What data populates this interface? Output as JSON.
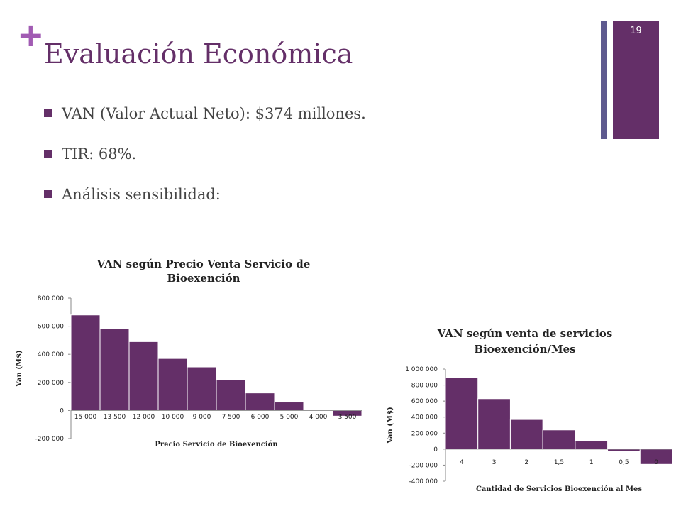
{
  "slide": {
    "number": "19",
    "title": "Evaluación Económica",
    "bullets": [
      "VAN (Valor Actual Neto): $374 millones.",
      "TIR:  68%.",
      "Análisis sensibilidad:"
    ]
  },
  "colors": {
    "accent": "#642f68",
    "plus": "#a15bb3",
    "side_bar": "#5e5a8f"
  },
  "chart_data": [
    {
      "type": "bar",
      "title": [
        "VAN según Precio Venta Servicio de",
        "Bioexención"
      ],
      "xlabel": "Precio Servicio de Bioexención",
      "ylabel": "Van (M$)",
      "categories": [
        "15 000",
        "13 500",
        "12 000",
        "10 000",
        "9 000",
        "7 500",
        "6 000",
        "5 000",
        "4 000",
        "3 500"
      ],
      "values": [
        680000,
        585000,
        490000,
        370000,
        310000,
        220000,
        125000,
        60000,
        -5000,
        -40000
      ],
      "yticks": [
        -200000,
        0,
        200000,
        400000,
        600000,
        800000
      ],
      "ytick_labels": [
        "-200 000",
        "0",
        "200 000",
        "400 000",
        "600 000",
        "800 000"
      ],
      "ylim": [
        -200000,
        800000
      ],
      "bar_color": "#642f68",
      "grid": false,
      "legend": "none"
    },
    {
      "type": "bar",
      "title": [
        "VAN según venta de servicios",
        "Bioexención/Mes"
      ],
      "xlabel": "Cantidad de Servicios Bioexención  al Mes",
      "ylabel": "Van (M$)",
      "categories": [
        "4",
        "3",
        "2",
        "1,5",
        "1",
        "0,5",
        "0"
      ],
      "values": [
        890000,
        630000,
        370000,
        240000,
        105000,
        -30000,
        -190000
      ],
      "yticks": [
        -400000,
        -200000,
        0,
        200000,
        400000,
        600000,
        800000,
        1000000
      ],
      "ytick_labels": [
        "-400 000",
        "-200 000",
        "0",
        "200 000",
        "400 000",
        "600 000",
        "800 000",
        "1 000 000"
      ],
      "ylim": [
        -400000,
        1000000
      ],
      "bar_color": "#642f68",
      "grid": false,
      "legend": "none"
    }
  ]
}
